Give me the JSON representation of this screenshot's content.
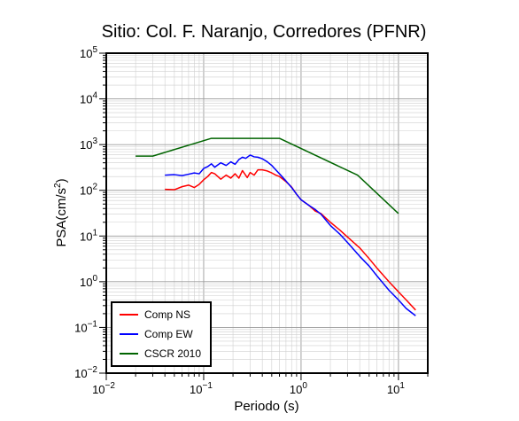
{
  "chart_data": {
    "type": "line",
    "title": "Sitio: Col. F. Naranjo, Corredores (PFNR)",
    "xlabel": "Periodo (s)",
    "ylabel_text": "PSA(cm/s",
    "ylabel_sup": "2",
    "ylabel_close": ")",
    "x_scale": "log",
    "y_scale": "log",
    "xlim": [
      0.01,
      20
    ],
    "ylim": [
      0.01,
      100000
    ],
    "grid": true,
    "legend_position": "bottom-left",
    "x_ticks": [
      {
        "base": "10",
        "exp": "−2",
        "value": 0.01
      },
      {
        "base": "10",
        "exp": "−1",
        "value": 0.1
      },
      {
        "base": "10",
        "exp": "0",
        "value": 1
      },
      {
        "base": "10",
        "exp": "1",
        "value": 10
      }
    ],
    "y_ticks": [
      {
        "base": "10",
        "exp": "−2",
        "value": 0.01
      },
      {
        "base": "10",
        "exp": "−1",
        "value": 0.1
      },
      {
        "base": "10",
        "exp": "0",
        "value": 1
      },
      {
        "base": "10",
        "exp": "1",
        "value": 10
      },
      {
        "base": "10",
        "exp": "2",
        "value": 100
      },
      {
        "base": "10",
        "exp": "3",
        "value": 1000
      },
      {
        "base": "10",
        "exp": "4",
        "value": 10000
      },
      {
        "base": "10",
        "exp": "5",
        "value": 100000
      }
    ],
    "series": [
      {
        "name": "Comp NS",
        "color": "#ff0000",
        "x": [
          0.04,
          0.05,
          0.06,
          0.07,
          0.08,
          0.09,
          0.1,
          0.11,
          0.12,
          0.13,
          0.15,
          0.17,
          0.19,
          0.21,
          0.23,
          0.25,
          0.28,
          0.3,
          0.33,
          0.36,
          0.4,
          0.45,
          0.5,
          0.55,
          0.6,
          0.7,
          0.8,
          0.9,
          1.0,
          1.2,
          1.4,
          1.6,
          2.0,
          2.5,
          3.0,
          4.0,
          5.0,
          6.0,
          8.0,
          10.0,
          12.0,
          15.0
        ],
        "y": [
          105,
          103,
          120,
          130,
          115,
          135,
          170,
          200,
          245,
          230,
          175,
          215,
          185,
          230,
          185,
          270,
          190,
          245,
          215,
          280,
          280,
          265,
          240,
          215,
          200,
          155,
          118,
          82,
          62,
          47,
          35,
          31,
          20,
          13.5,
          9.5,
          5.5,
          3.2,
          2.0,
          1.0,
          0.6,
          0.4,
          0.24
        ]
      },
      {
        "name": "Comp EW",
        "color": "#0000ff",
        "x": [
          0.04,
          0.05,
          0.06,
          0.07,
          0.08,
          0.09,
          0.1,
          0.11,
          0.12,
          0.13,
          0.14,
          0.15,
          0.17,
          0.19,
          0.21,
          0.23,
          0.25,
          0.27,
          0.3,
          0.33,
          0.36,
          0.4,
          0.45,
          0.5,
          0.55,
          0.6,
          0.7,
          0.8,
          0.9,
          1.0,
          1.2,
          1.4,
          1.6,
          2.0,
          2.5,
          3.0,
          4.0,
          5.0,
          6.0,
          8.0,
          10.0,
          12.0,
          15.0
        ],
        "y": [
          215,
          220,
          210,
          225,
          240,
          230,
          300,
          330,
          380,
          320,
          360,
          400,
          350,
          420,
          370,
          470,
          530,
          500,
          590,
          540,
          530,
          490,
          420,
          350,
          280,
          230,
          160,
          115,
          82,
          62,
          47,
          38,
          30,
          17,
          11,
          7.2,
          3.6,
          2.2,
          1.35,
          0.65,
          0.4,
          0.26,
          0.18
        ]
      },
      {
        "name": "CSCR 2010",
        "color": "#006400",
        "x": [
          0.02,
          0.03,
          0.12,
          0.6,
          3.8,
          10.0
        ],
        "y": [
          560,
          560,
          1370,
          1370,
          215,
          31
        ]
      }
    ]
  }
}
